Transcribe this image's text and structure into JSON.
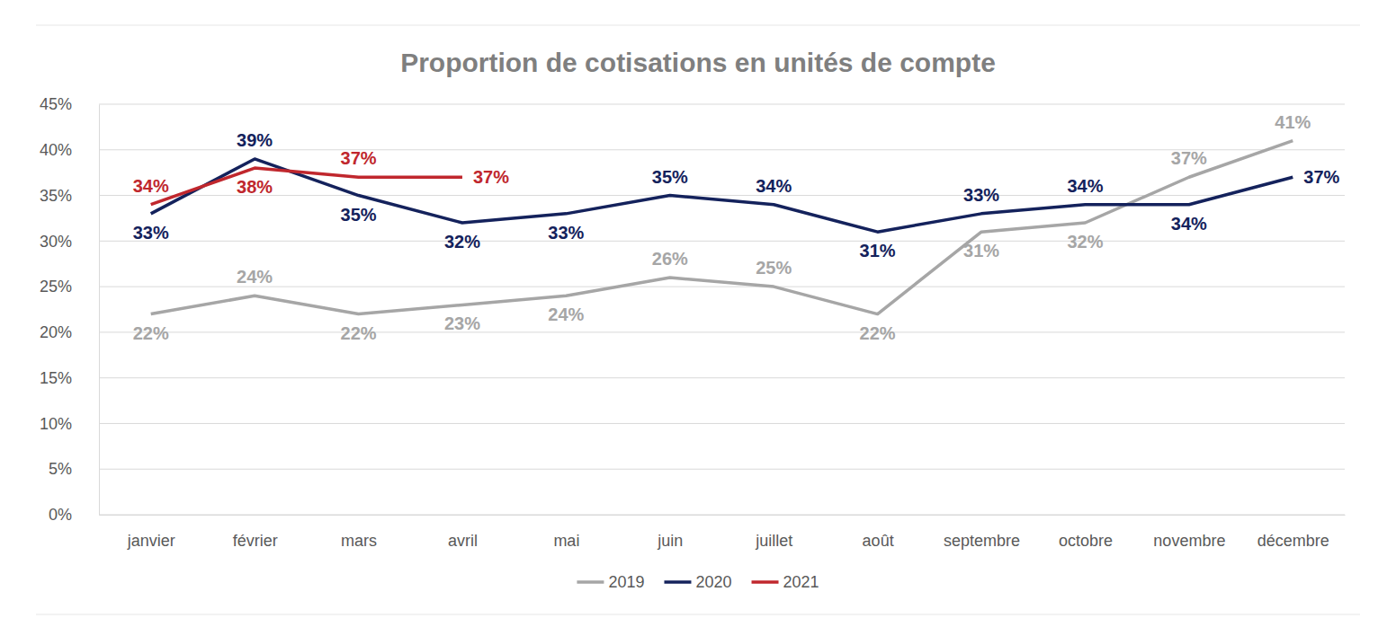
{
  "chart_data": {
    "type": "line",
    "title": "Proportion de cotisations en unités de compte",
    "categories": [
      "janvier",
      "février",
      "mars",
      "avril",
      "mai",
      "juin",
      "juillet",
      "août",
      "septembre",
      "octobre",
      "novembre",
      "décembre"
    ],
    "series": [
      {
        "name": "2019",
        "color": "#a6a6a6",
        "values": [
          22,
          24,
          22,
          23,
          24,
          26,
          25,
          22,
          31,
          32,
          37,
          41
        ],
        "value_labels": [
          "22%",
          "24%",
          "22%",
          "23%",
          "24%",
          "26%",
          "25%",
          "22%",
          "31%",
          "32%",
          "37%",
          "41%"
        ]
      },
      {
        "name": "2020",
        "color": "#14225c",
        "values": [
          33,
          39,
          35,
          32,
          33,
          35,
          34,
          31,
          33,
          34,
          34,
          37
        ],
        "value_labels": [
          "33%",
          "39%",
          "35%",
          "32%",
          "33%",
          "35%",
          "34%",
          "31%",
          "33%",
          "34%",
          "34%",
          "37%"
        ]
      },
      {
        "name": "2021",
        "color": "#c0272d",
        "values": [
          34,
          38,
          37,
          37,
          null,
          null,
          null,
          null,
          null,
          null,
          null,
          null
        ],
        "value_labels": [
          "34%",
          "38%",
          "37%",
          "37%",
          null,
          null,
          null,
          null,
          null,
          null,
          null,
          null
        ]
      }
    ],
    "ylim": [
      0,
      45
    ],
    "yticks": [
      {
        "value": 0,
        "label": "0%"
      },
      {
        "value": 5,
        "label": "5%"
      },
      {
        "value": 10,
        "label": "10%"
      },
      {
        "value": 15,
        "label": "15%"
      },
      {
        "value": 20,
        "label": "20%"
      },
      {
        "value": 25,
        "label": "25%"
      },
      {
        "value": 30,
        "label": "30%"
      },
      {
        "value": 35,
        "label": "35%"
      },
      {
        "value": 40,
        "label": "40%"
      },
      {
        "value": 45,
        "label": "45%"
      }
    ],
    "grid": true,
    "legend": "bottom",
    "data_labels": true
  }
}
